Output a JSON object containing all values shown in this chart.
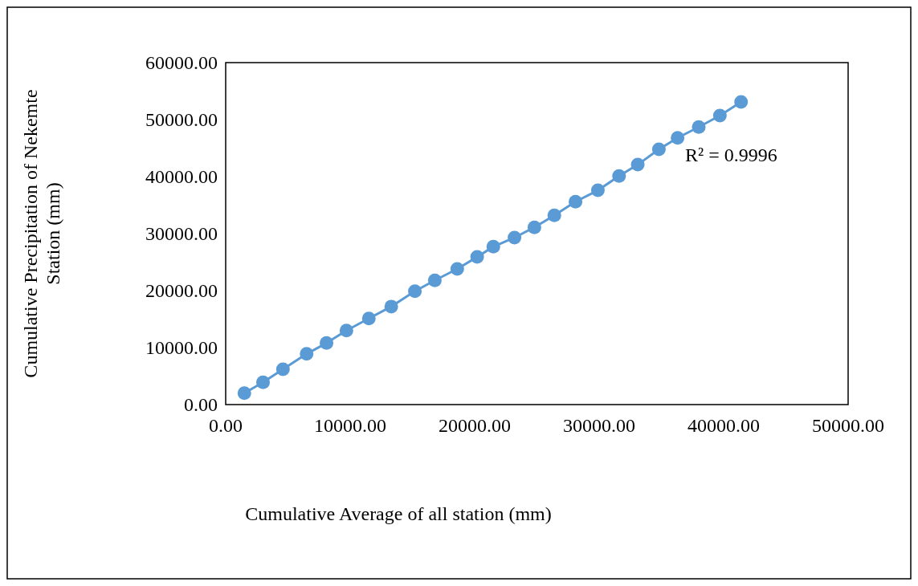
{
  "chart_data": {
    "type": "line",
    "xlabel": "Cumulative Average of all station (mm)",
    "ylabel": "Cumulative Precipitation of Nekemte Station (mm)",
    "xlim": [
      0,
      50000
    ],
    "xticks": [
      {
        "value": 0,
        "label": "0.00"
      },
      {
        "value": 10000,
        "label": "10000.00"
      },
      {
        "value": 20000,
        "label": "20000.00"
      },
      {
        "value": 30000,
        "label": "30000.00"
      },
      {
        "value": 40000,
        "label": "40000.00"
      },
      {
        "value": 50000,
        "label": "50000.00"
      }
    ],
    "ylim": [
      0,
      60000
    ],
    "yticks": [
      {
        "value": 0,
        "label": "0.00"
      },
      {
        "value": 10000,
        "label": "10000.00"
      },
      {
        "value": 20000,
        "label": "20000.00"
      },
      {
        "value": 30000,
        "label": "30000.00"
      },
      {
        "value": 40000,
        "label": "40000.00"
      },
      {
        "value": 50000,
        "label": "50000.00"
      },
      {
        "value": 60000,
        "label": "60000.00"
      }
    ],
    "grid": false,
    "marker": "circle",
    "line_style": "solid",
    "annotations": [
      "R² = 0.9996"
    ],
    "series": [
      {
        "color": "#5b9bd5",
        "x": [
          1500,
          3000,
          4600,
          6500,
          8100,
          9700,
          11500,
          13300,
          15200,
          16800,
          18600,
          20200,
          21500,
          23200,
          24800,
          26400,
          28100,
          29900,
          31600,
          33100,
          34800,
          36300,
          38000,
          39700,
          41400
        ],
        "values": [
          2000,
          3900,
          6200,
          8900,
          10800,
          13000,
          15100,
          17200,
          19900,
          21800,
          23800,
          25900,
          27700,
          29300,
          31100,
          33200,
          35600,
          37600,
          40100,
          42100,
          44800,
          46800,
          48700,
          50700,
          53100
        ]
      }
    ]
  }
}
